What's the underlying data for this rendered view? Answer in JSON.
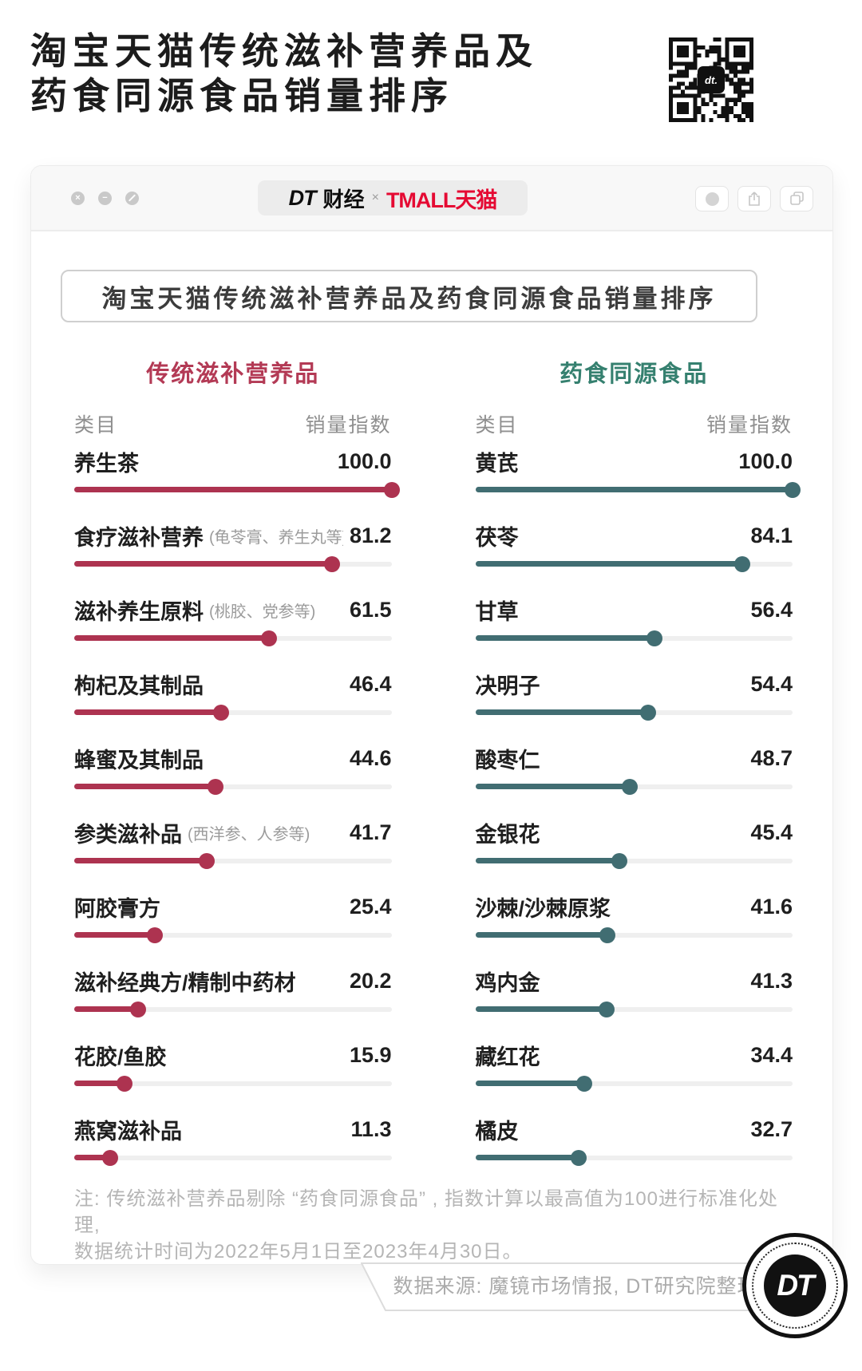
{
  "header": {
    "title_line1": "淘宝天猫传统滋补营养品及",
    "title_line2": "药食同源食品销量排序"
  },
  "qr": {
    "center_label": "dt."
  },
  "window": {
    "traffic_lights": [
      "close",
      "minimize",
      "block"
    ],
    "logo": {
      "dt": "DT",
      "caijing": "财经",
      "separator": "×",
      "tmall": "TMALL天猫",
      "tmall_color": "#e50a33"
    },
    "buttons": [
      "record",
      "share",
      "copy"
    ],
    "chart_title": "淘宝天猫传统滋补营养品及药食同源食品销量排序"
  },
  "chart_data": {
    "type": "bar",
    "title": "淘宝天猫传统滋补营养品及药食同源食品销量排序",
    "category_axis_label": "类目",
    "value_axis_label": "销量指数",
    "range": [
      0,
      100
    ],
    "columns": [
      {
        "title": "传统滋补营养品",
        "title_color": "#b33a55",
        "bar_color": "#ad3350",
        "col_header": "类目",
        "value_header": "销量指数",
        "items": [
          {
            "label": "养生茶",
            "note": "",
            "value": 100.0,
            "display": "100.0"
          },
          {
            "label": "食疗滋补营养",
            "note": "(龟苓膏、养生丸等)",
            "value": 81.2,
            "display": "81.2"
          },
          {
            "label": "滋补养生原料",
            "note": "(桃胶、党参等)",
            "value": 61.5,
            "display": "61.5"
          },
          {
            "label": "枸杞及其制品",
            "note": "",
            "value": 46.4,
            "display": "46.4"
          },
          {
            "label": "蜂蜜及其制品",
            "note": "",
            "value": 44.6,
            "display": "44.6"
          },
          {
            "label": "参类滋补品",
            "note": "(西洋参、人参等)",
            "value": 41.7,
            "display": "41.7"
          },
          {
            "label": "阿胶膏方",
            "note": "",
            "value": 25.4,
            "display": "25.4"
          },
          {
            "label": "滋补经典方/精制中药材",
            "note": "",
            "value": 20.2,
            "display": "20.2"
          },
          {
            "label": "花胶/鱼胶",
            "note": "",
            "value": 15.9,
            "display": "15.9"
          },
          {
            "label": "燕窝滋补品",
            "note": "",
            "value": 11.3,
            "display": "11.3"
          }
        ]
      },
      {
        "title": "药食同源食品",
        "title_color": "#35806f",
        "bar_color": "#416d72",
        "col_header": "类目",
        "value_header": "销量指数",
        "items": [
          {
            "label": "黄芪",
            "note": "",
            "value": 100.0,
            "display": "100.0"
          },
          {
            "label": "茯苓",
            "note": "",
            "value": 84.1,
            "display": "84.1"
          },
          {
            "label": "甘草",
            "note": "",
            "value": 56.4,
            "display": "56.4"
          },
          {
            "label": "决明子",
            "note": "",
            "value": 54.4,
            "display": "54.4"
          },
          {
            "label": "酸枣仁",
            "note": "",
            "value": 48.7,
            "display": "48.7"
          },
          {
            "label": "金银花",
            "note": "",
            "value": 45.4,
            "display": "45.4"
          },
          {
            "label": "沙棘/沙棘原浆",
            "note": "",
            "value": 41.6,
            "display": "41.6"
          },
          {
            "label": "鸡内金",
            "note": "",
            "value": 41.3,
            "display": "41.3"
          },
          {
            "label": "藏红花",
            "note": "",
            "value": 34.4,
            "display": "34.4"
          },
          {
            "label": "橘皮",
            "note": "",
            "value": 32.7,
            "display": "32.7"
          }
        ]
      }
    ]
  },
  "note": {
    "line1": "注: 传统滋补营养品剔除 “药食同源食品” , 指数计算以最高值为100进行标准化处理,",
    "line2": "数据统计时间为2022年5月1日至2023年4月30日。"
  },
  "footer": {
    "source": "数据来源: 魔镜市场情报, DT研究院整理",
    "logo_text": "DT"
  }
}
